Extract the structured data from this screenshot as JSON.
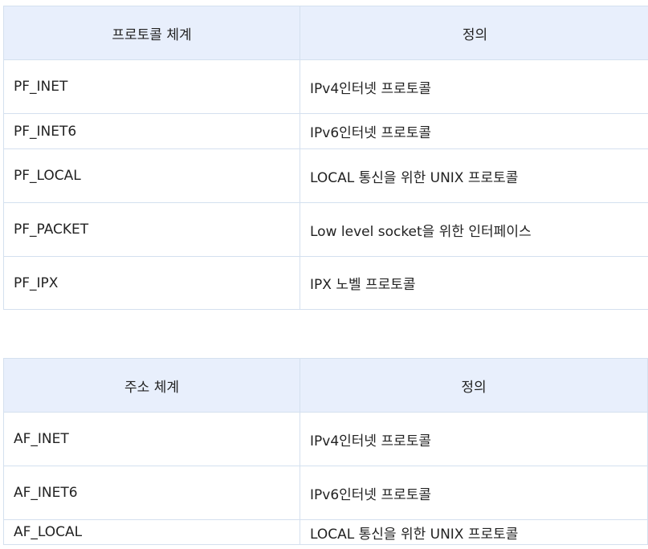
{
  "protocol_table": {
    "headers": [
      "프로토콜 체계",
      "정의"
    ],
    "rows": [
      [
        "PF_INET",
        "IPv4인터넷 프로토콜"
      ],
      [
        "PF_INET6",
        "IPv6인터넷 프로토콜"
      ],
      [
        "PF_LOCAL",
        "LOCAL 통신을 위한 UNIX 프로토콜"
      ],
      [
        "PF_PACKET",
        "Low level socket을 위한 인터페이스"
      ],
      [
        "PF_IPX",
        "IPX 노벨 프로토콜"
      ]
    ]
  },
  "address_table": {
    "headers": [
      "주소 체계",
      "정의"
    ],
    "rows": [
      [
        "AF_INET",
        "IPv4인터넷 프로토콜"
      ],
      [
        "AF_INET6",
        "IPv6인터넷 프로토콜"
      ],
      [
        "AF_LOCAL",
        "LOCAL 통신을 위한 UNIX 프로토콜"
      ]
    ]
  },
  "colors": {
    "header_background": "#e8effc",
    "border": "#d4e0ef",
    "text": "#222222"
  }
}
